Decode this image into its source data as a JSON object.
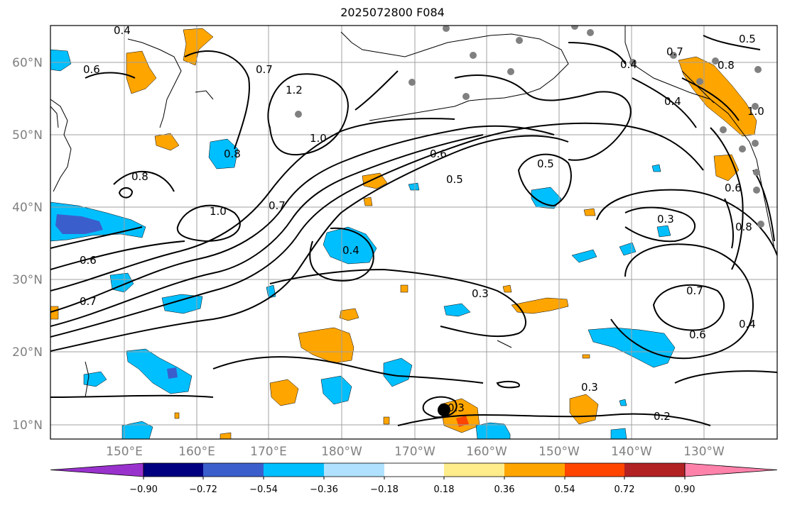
{
  "title": "2025072800 F084",
  "lat_labels": [
    "60°N",
    "50°N",
    "40°N",
    "30°N",
    "20°N",
    "10°N"
  ],
  "lon_labels": [
    "150°E",
    "160°E",
    "170°E",
    "180°W",
    "170°W",
    "160°W",
    "150°W",
    "140°W",
    "130°W"
  ],
  "colorbar": {
    "labels": [
      "−0.90",
      "−0.72",
      "−0.54",
      "−0.36",
      "−0.18",
      "0.18",
      "0.36",
      "0.54",
      "0.72",
      "0.90"
    ],
    "colors": [
      "#9932cc",
      "#000080",
      "#3a5fcd",
      "#00bfff",
      "#b0e2ff",
      "#ffffff",
      "#ffec8b",
      "#ffa500",
      "#ff4500",
      "#b22222",
      "#ff82ab"
    ]
  },
  "contour_labels": [
    "0.4",
    "0.6",
    "0.7",
    "1.2",
    "1.0",
    "0.8",
    "0.7",
    "1.0",
    "0.6",
    "0.7",
    "0.8",
    "0.6",
    "0.5",
    "0.5",
    "0.4",
    "0.3",
    "0.7",
    "0.6",
    "0.4",
    "0.3",
    "0.3",
    "0.2",
    "0.5",
    "0.8",
    "0.4",
    "1.0",
    "0.6",
    "0.8",
    "0.7",
    "0.4",
    "0.3"
  ],
  "colors": {
    "grid": "#a0a0a0",
    "contour": "#000000",
    "coast": "#000000",
    "orange": "#ffa500",
    "cyan": "#00bfff",
    "blue": "#3a5fcd"
  }
}
